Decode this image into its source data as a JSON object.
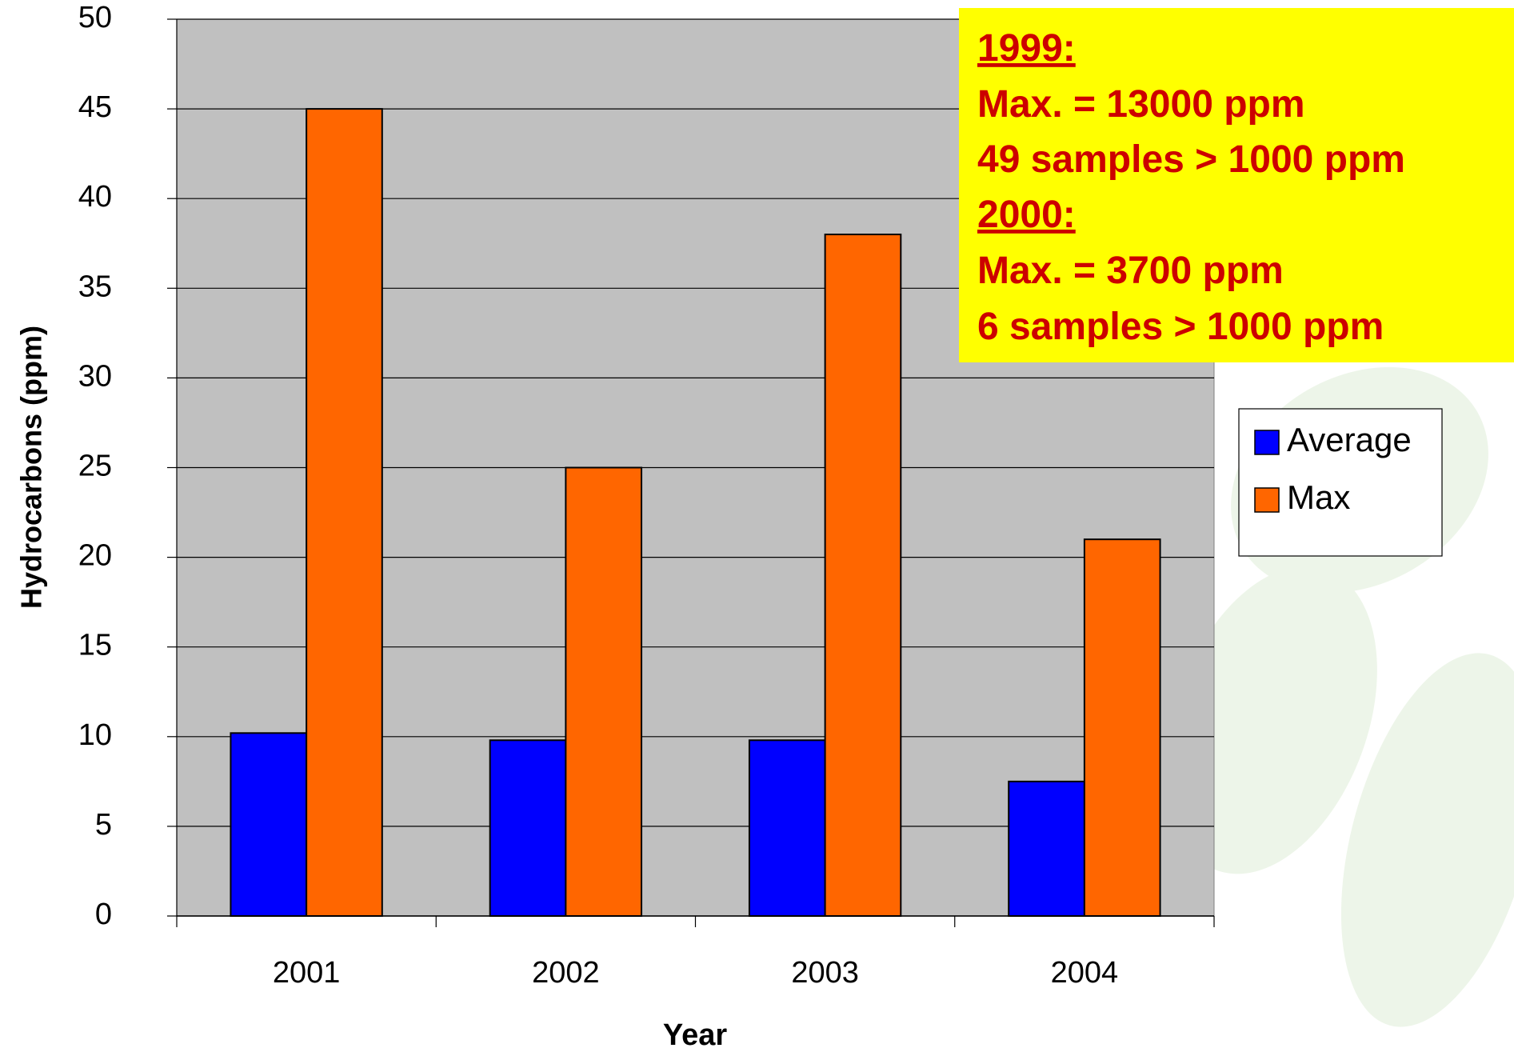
{
  "chart_data": {
    "type": "bar",
    "y_label": "Hydrocarbons (ppm)",
    "x_label": "Year",
    "categories": [
      "2001",
      "2002",
      "2003",
      "2004"
    ],
    "series": [
      {
        "name": "Average",
        "color": "#0000ff",
        "values": [
          10.2,
          9.8,
          9.8,
          7.5
        ]
      },
      {
        "name": "Max",
        "color": "#ff6600",
        "values": [
          45,
          25,
          38,
          21
        ]
      }
    ],
    "ylim": [
      0,
      50
    ],
    "yticks": [
      0,
      5,
      10,
      15,
      20,
      25,
      30,
      35,
      40,
      45,
      50
    ],
    "grid": true,
    "legend": "right",
    "annotations": [
      "1999:",
      "Max. = 13000 ppm",
      "49 samples > 1000 ppm",
      "2000:",
      "Max. = 3700 ppm",
      "6 samples > 1000 ppm"
    ]
  }
}
